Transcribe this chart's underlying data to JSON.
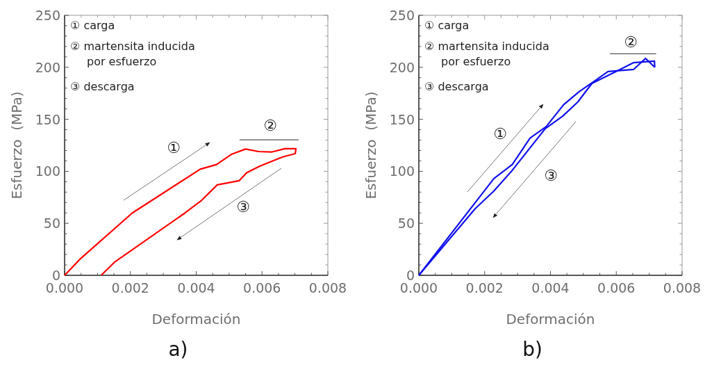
{
  "chart_data": [
    {
      "type": "line",
      "title": "a)",
      "xlabel": "Deformación",
      "ylabel": "Esfuerzo  (MPa)",
      "xlim": [
        0,
        0.008
      ],
      "ylim": [
        0,
        250
      ],
      "xticks": [
        {
          "value": 0,
          "label": "0.000"
        },
        {
          "value": 0.0005,
          "label": null
        },
        {
          "value": 0.001,
          "label": null
        },
        {
          "value": 0.0015,
          "label": null
        },
        {
          "value": 0.002,
          "label": "0.002"
        },
        {
          "value": 0.0025,
          "label": null
        },
        {
          "value": 0.003,
          "label": null
        },
        {
          "value": 0.0035,
          "label": null
        },
        {
          "value": 0.004,
          "label": "0.004"
        },
        {
          "value": 0.0045,
          "label": null
        },
        {
          "value": 0.005,
          "label": null
        },
        {
          "value": 0.0055,
          "label": null
        },
        {
          "value": 0.006,
          "label": "0.006"
        },
        {
          "value": 0.0065,
          "label": null
        },
        {
          "value": 0.007,
          "label": null
        },
        {
          "value": 0.0075,
          "label": null
        },
        {
          "value": 0.008,
          "label": "0.008"
        }
      ],
      "yticks": [
        0,
        {
          "value": 10,
          "label": null
        },
        {
          "value": 20,
          "label": null
        },
        {
          "value": 30,
          "label": null
        },
        {
          "value": 40,
          "label": null
        },
        50,
        {
          "value": 60,
          "label": null
        },
        {
          "value": 70,
          "label": null
        },
        {
          "value": 80,
          "label": null
        },
        {
          "value": 90,
          "label": null
        },
        100,
        {
          "value": 110,
          "label": null
        },
        {
          "value": 120,
          "label": null
        },
        {
          "value": 130,
          "label": null
        },
        {
          "value": 140,
          "label": null
        },
        150,
        {
          "value": 160,
          "label": null
        },
        {
          "value": 170,
          "label": null
        },
        {
          "value": 180,
          "label": null
        },
        {
          "value": 190,
          "label": null
        },
        200,
        {
          "value": 210,
          "label": null
        },
        {
          "value": 220,
          "label": null
        },
        {
          "value": 230,
          "label": null
        },
        {
          "value": 240,
          "label": null
        },
        250
      ],
      "grid": false,
      "line_style": "solid",
      "series": [
        {
          "color": "#ff0000",
          "x": [
            0,
            0.00047,
            0.00206,
            0.00412,
            0.00462,
            0.00508,
            0.0055,
            0.0059,
            0.00628,
            0.0067,
            0.00703,
            0.00701,
            0.00664,
            0.00593,
            0.00553,
            0.00531,
            0.00464,
            0.00416,
            0.00366,
            0.00153,
            0.00111
          ],
          "values": [
            0,
            15.6,
            60,
            102,
            106.5,
            116.5,
            121.4,
            119,
            118.5,
            121.7,
            121.7,
            117,
            114,
            105,
            98.6,
            91,
            87,
            72,
            60,
            13,
            0
          ]
        },
        {
          "color": "#555555",
          "x": [
            0.00532,
            0.00711
          ],
          "values": [
            130.3,
            130.3
          ]
        }
      ],
      "annotations": [
        "① carga",
        "② martensita inducida\npor esfuerzo",
        "③ descarga",
        "①",
        "③",
        "②"
      ]
    },
    {
      "type": "line",
      "title": "b)",
      "xlabel": "Deformación",
      "ylabel": "Esfuerzo  (MPa)",
      "xlim": [
        0,
        0.008
      ],
      "ylim": [
        0,
        250
      ],
      "xticks": [
        {
          "value": 0,
          "label": "0.000"
        },
        {
          "value": 0.0005,
          "label": null
        },
        {
          "value": 0.001,
          "label": null
        },
        {
          "value": 0.0015,
          "label": null
        },
        {
          "value": 0.002,
          "label": "0.002"
        },
        {
          "value": 0.0025,
          "label": null
        },
        {
          "value": 0.003,
          "label": null
        },
        {
          "value": 0.0035,
          "label": null
        },
        {
          "value": 0.004,
          "label": "0.004"
        },
        {
          "value": 0.0045,
          "label": null
        },
        {
          "value": 0.005,
          "label": null
        },
        {
          "value": 0.0055,
          "label": null
        },
        {
          "value": 0.006,
          "label": "0.006"
        },
        {
          "value": 0.0065,
          "label": null
        },
        {
          "value": 0.007,
          "label": null
        },
        {
          "value": 0.0075,
          "label": null
        },
        {
          "value": 0.008,
          "label": "0.008"
        }
      ],
      "yticks": [
        0,
        {
          "value": 10,
          "label": null
        },
        {
          "value": 20,
          "label": null
        },
        {
          "value": 30,
          "label": null
        },
        {
          "value": 40,
          "label": null
        },
        50,
        {
          "value": 60,
          "label": null
        },
        {
          "value": 70,
          "label": null
        },
        {
          "value": 80,
          "label": null
        },
        {
          "value": 90,
          "label": null
        },
        100,
        {
          "value": 110,
          "label": null
        },
        {
          "value": 120,
          "label": null
        },
        {
          "value": 130,
          "label": null
        },
        {
          "value": 140,
          "label": null
        },
        150,
        {
          "value": 160,
          "label": null
        },
        {
          "value": 170,
          "label": null
        },
        {
          "value": 180,
          "label": null
        },
        {
          "value": 190,
          "label": null
        },
        200,
        {
          "value": 210,
          "label": null
        },
        {
          "value": 220,
          "label": null
        },
        {
          "value": 230,
          "label": null
        },
        {
          "value": 240,
          "label": null
        },
        250
      ],
      "grid": false,
      "line_style": "solid",
      "series": [
        {
          "color": "#1010ee",
          "x": [
            0,
            0.00228,
            0.00284,
            0.00338,
            0.00387,
            0.0044,
            0.00487,
            0.00533,
            0.00575,
            0.00653,
            0.00689,
            0.00717
          ],
          "values": [
            0,
            93,
            106.5,
            132,
            143,
            164,
            176.6,
            186.6,
            196,
            198,
            208.6,
            200
          ]
        },
        {
          "color": "#1010ee",
          "x": [
            0.00717,
            0.00716,
            0.00653,
            0.00604,
            0.00526,
            0.00483,
            0.00437,
            0.00384,
            0.00284,
            0.00228,
            0.00171,
            0
          ],
          "values": [
            200,
            206,
            204.5,
            196.7,
            184.5,
            166.6,
            153,
            141,
            101,
            81,
            64,
            0
          ]
        },
        {
          "color": "#555555",
          "x": [
            0.00581,
            0.00721
          ],
          "values": [
            213,
            213
          ]
        }
      ],
      "annotations": [
        "① carga",
        "② martensita inducida\npor esfuerzo",
        "③ descarga",
        "①",
        "③",
        "②"
      ]
    }
  ]
}
